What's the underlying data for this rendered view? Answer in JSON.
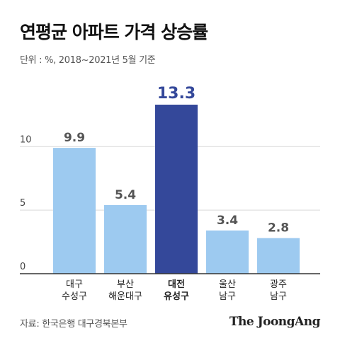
{
  "title": "연평균 아파트 가격 상승률",
  "subtitle": "단위 : %, 2018~2021년 5월 기준",
  "source": "자료: 한국은행 대구경북본부",
  "brand": "The JoongAng",
  "colors": {
    "bar_default": "#9dcaf0",
    "bar_highlight": "#34489a",
    "label_default": "#555555",
    "label_highlight": "#34489a",
    "axis": "#333333",
    "grid": "#d9d9d9"
  },
  "chart_data": {
    "type": "bar",
    "categories": [
      [
        "대구",
        "수성구"
      ],
      [
        "부산",
        "해운대구"
      ],
      [
        "대전",
        "유성구"
      ],
      [
        "울산",
        "남구"
      ],
      [
        "광주",
        "남구"
      ]
    ],
    "values": [
      9.9,
      5.4,
      13.3,
      3.4,
      2.8
    ],
    "highlight_index": 2,
    "yticks": [
      0,
      5,
      10
    ],
    "ylim": [
      0,
      13.3
    ],
    "grid": true,
    "xlabel": "",
    "ylabel": ""
  }
}
